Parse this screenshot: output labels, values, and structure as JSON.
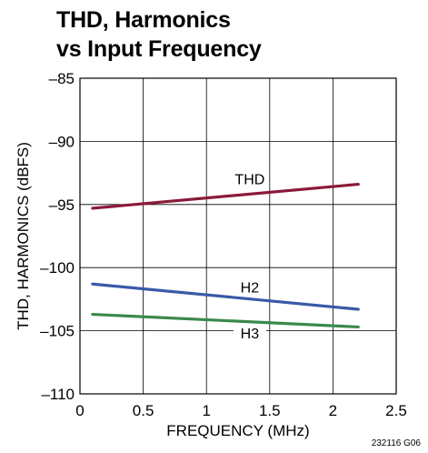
{
  "chart_data": {
    "type": "line",
    "title_line1": "THD, Harmonics",
    "title_line2": "vs Input Frequency",
    "xlabel": "FREQUENCY (MHz)",
    "ylabel": "THD, HARMONICS (dBFS)",
    "xlim": [
      0,
      2.5
    ],
    "ylim": [
      -110,
      -85
    ],
    "x_ticks": [
      0,
      0.5,
      1,
      1.5,
      2,
      2.5
    ],
    "x_tick_labels": [
      "0",
      "0.5",
      "1",
      "1.5",
      "2",
      "2.5"
    ],
    "y_ticks": [
      -85,
      -90,
      -95,
      -100,
      -105,
      -110
    ],
    "y_tick_labels": [
      "–85",
      "–90",
      "–95",
      "–100",
      "–105",
      "–110"
    ],
    "grid": true,
    "series": [
      {
        "name": "THD",
        "color": "#8b1a3a",
        "x": [
          0.1,
          2.2
        ],
        "y": [
          -95.3,
          -93.4
        ]
      },
      {
        "name": "H2",
        "color": "#3a5aa8",
        "x": [
          0.1,
          2.2
        ],
        "y": [
          -101.3,
          -103.3
        ]
      },
      {
        "name": "H3",
        "color": "#3a8a4a",
        "x": [
          0.1,
          2.2
        ],
        "y": [
          -103.7,
          -104.7
        ]
      }
    ],
    "figure_id": "232116 G06"
  }
}
